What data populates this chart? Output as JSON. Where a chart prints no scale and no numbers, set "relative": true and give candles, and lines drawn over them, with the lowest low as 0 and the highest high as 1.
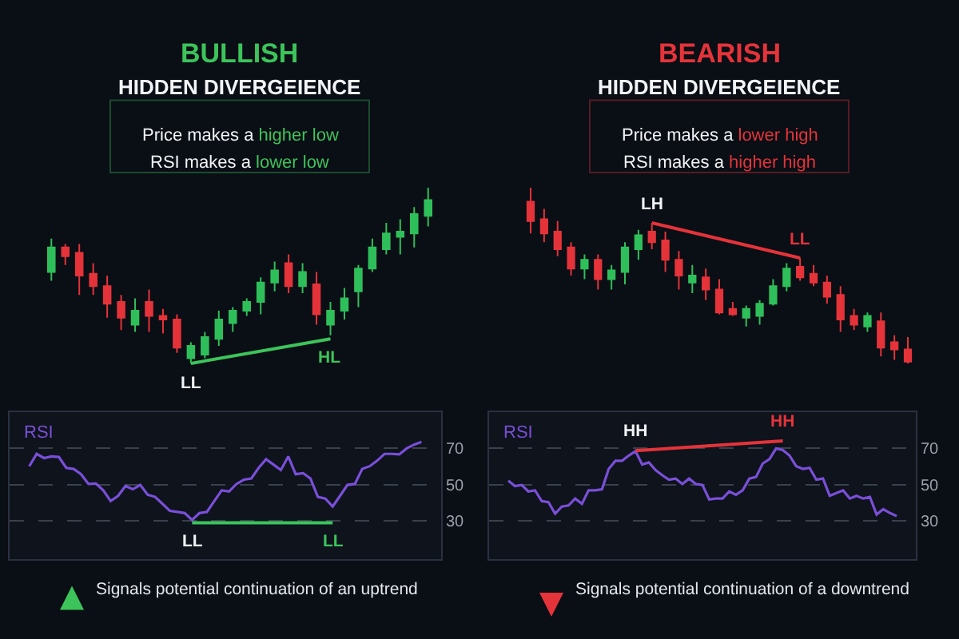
{
  "chart_data": [
    {
      "type": "candlestick",
      "title": "BULLISH",
      "subtitle": "HIDDEN DIVERGEIENCE",
      "relative": true,
      "tick_labels": false,
      "categories": [
        null,
        null,
        null,
        null,
        null,
        null,
        null,
        null,
        null,
        null,
        null,
        null,
        null,
        null,
        null,
        null,
        null,
        null,
        null,
        null,
        null,
        null,
        null,
        null,
        null,
        null,
        null,
        null
      ],
      "ohlc": [
        [
          0.52,
          0.71,
          0.47,
          0.66
        ],
        [
          0.66,
          0.68,
          0.56,
          0.61
        ],
        [
          0.63,
          0.68,
          0.39,
          0.5
        ],
        [
          0.51,
          0.57,
          0.39,
          0.44
        ],
        [
          0.44,
          0.5,
          0.26,
          0.34
        ],
        [
          0.35,
          0.39,
          0.19,
          0.26
        ],
        [
          0.22,
          0.37,
          0.18,
          0.3
        ],
        [
          0.35,
          0.42,
          0.18,
          0.27
        ],
        [
          0.27,
          0.31,
          0.17,
          0.25
        ],
        [
          0.25,
          0.28,
          0.06,
          0.09
        ],
        [
          0.03,
          0.12,
          0,
          0.1
        ],
        [
          0.05,
          0.18,
          0.03,
          0.15
        ],
        [
          0.14,
          0.3,
          0.1,
          0.25
        ],
        [
          0.23,
          0.32,
          0.18,
          0.3
        ],
        [
          0.3,
          0.37,
          0.27,
          0.35
        ],
        [
          0.35,
          0.49,
          0.28,
          0.46
        ],
        [
          0.46,
          0.58,
          0.41,
          0.53
        ],
        [
          0.57,
          0.62,
          0.4,
          0.44
        ],
        [
          0.44,
          0.57,
          0.4,
          0.52
        ],
        [
          0.45,
          0.52,
          0.22,
          0.28
        ],
        [
          0.22,
          0.35,
          0.16,
          0.3
        ],
        [
          0.3,
          0.43,
          0.25,
          0.37
        ],
        [
          0.41,
          0.56,
          0.32,
          0.54
        ],
        [
          0.54,
          0.71,
          0.52,
          0.66
        ],
        [
          0.65,
          0.8,
          0.62,
          0.74
        ],
        [
          0.72,
          0.82,
          0.62,
          0.75
        ],
        [
          0.74,
          0.89,
          0.66,
          0.85
        ],
        [
          0.84,
          1.0,
          0.78,
          0.93
        ]
      ],
      "series": [
        {
          "type": "line",
          "color": "#3cc45a",
          "values": [
            null,
            null,
            null,
            null,
            null,
            null,
            null,
            null,
            null,
            null,
            0,
            null,
            null,
            null,
            null,
            null,
            null,
            null,
            null,
            null,
            0.14,
            null,
            null,
            null,
            null,
            null,
            null,
            null
          ]
        }
      ],
      "annotations": [
        "Price makes a higher low",
        "RSI makes a lower low",
        {
          "text": "LL",
          "y": 0
        },
        {
          "text": "HL",
          "y": 0.14
        },
        "Signals potential continuation of an uptrend"
      ]
    },
    {
      "type": "line",
      "title": "RSI",
      "ylim": [
        9,
        90
      ],
      "yticks": [
        30,
        50,
        70
      ],
      "grid": "y",
      "tick_labels": "y",
      "categories": [
        null,
        null,
        null,
        null,
        null,
        null,
        null,
        null,
        null,
        null,
        null,
        null,
        null,
        null,
        null,
        null,
        null,
        null,
        null,
        null,
        null,
        null,
        null,
        null,
        null,
        null,
        null,
        null,
        null,
        null,
        null,
        null,
        null,
        null,
        null,
        null,
        null,
        null,
        null,
        null,
        null,
        null,
        null,
        null,
        null,
        null,
        null,
        null,
        null,
        null,
        null,
        null,
        null,
        null
      ],
      "series": [
        {
          "color": "#7a4fd8",
          "values": [
            60.2,
            67.0,
            64.7,
            65.6,
            65.3,
            59.3,
            58.7,
            55.8,
            50.4,
            50.7,
            46.9,
            41.0,
            43.9,
            49.3,
            47.5,
            49.9,
            44.5,
            43.3,
            39.5,
            35.6,
            35.0,
            34.4,
            30.6,
            34.4,
            35.0,
            41.0,
            46.9,
            46.3,
            50.4,
            52.8,
            53.4,
            59.3,
            64.1,
            61.1,
            58.1,
            65.6,
            55.8,
            56.4,
            53.4,
            43.3,
            42.4,
            38.0,
            43.9,
            49.9,
            50.4,
            58.7,
            60.2,
            63.2,
            67.0,
            67.0,
            66.7,
            70.0,
            72.1,
            73.6
          ]
        },
        {
          "type": "line",
          "color": "#3cc45a",
          "values": [
            null,
            null,
            null,
            null,
            null,
            null,
            null,
            null,
            null,
            null,
            null,
            null,
            null,
            null,
            null,
            null,
            null,
            null,
            null,
            null,
            null,
            null,
            29,
            null,
            null,
            null,
            null,
            null,
            null,
            null,
            null,
            null,
            null,
            null,
            null,
            null,
            null,
            null,
            null,
            null,
            null,
            29,
            null,
            null,
            null,
            null,
            null,
            null,
            null,
            null,
            null,
            null,
            null,
            null
          ]
        }
      ],
      "annotations": [
        {
          "text": "LL",
          "y": 29
        },
        {
          "text": "LL",
          "y": 29
        }
      ]
    },
    {
      "type": "candlestick",
      "title": "BEARISH",
      "subtitle": "HIDDEN DIVERGEIENCE",
      "relative": true,
      "tick_labels": false,
      "categories": [
        null,
        null,
        null,
        null,
        null,
        null,
        null,
        null,
        null,
        null,
        null,
        null,
        null,
        null,
        null,
        null,
        null,
        null,
        null,
        null,
        null,
        null,
        null,
        null,
        null,
        null,
        null,
        null,
        null
      ],
      "ohlc": [
        [
          0.92,
          1.0,
          0.74,
          0.81
        ],
        [
          0.82,
          0.88,
          0.69,
          0.74
        ],
        [
          0.75,
          0.81,
          0.61,
          0.65
        ],
        [
          0.66,
          0.69,
          0.5,
          0.54
        ],
        [
          0.54,
          0.62,
          0.48,
          0.59
        ],
        [
          0.59,
          0.62,
          0.42,
          0.48
        ],
        [
          0.48,
          0.56,
          0.42,
          0.53
        ],
        [
          0.52,
          0.69,
          0.45,
          0.66
        ],
        [
          0.65,
          0.76,
          0.59,
          0.73
        ],
        [
          0.75,
          0.8,
          0.65,
          0.69
        ],
        [
          0.7,
          0.75,
          0.52,
          0.59
        ],
        [
          0.59,
          0.64,
          0.42,
          0.5
        ],
        [
          0.46,
          0.56,
          0.4,
          0.5
        ],
        [
          0.49,
          0.54,
          0.36,
          0.42
        ],
        [
          0.42,
          0.48,
          0.28,
          0.29
        ],
        [
          0.31,
          0.35,
          0.27,
          0.28
        ],
        [
          0.26,
          0.33,
          0.21,
          0.31
        ],
        [
          0.27,
          0.36,
          0.22,
          0.34
        ],
        [
          0.34,
          0.48,
          0.33,
          0.44
        ],
        [
          0.44,
          0.57,
          0.41,
          0.54
        ],
        [
          0.55,
          0.6,
          0.47,
          0.49
        ],
        [
          0.51,
          0.56,
          0.44,
          0.46
        ],
        [
          0.46,
          0.5,
          0.34,
          0.38
        ],
        [
          0.39,
          0.44,
          0.18,
          0.25
        ],
        [
          0.27,
          0.31,
          0.19,
          0.22
        ],
        [
          0.21,
          0.29,
          0.18,
          0.27
        ],
        [
          0.24,
          0.29,
          0.04,
          0.09
        ],
        [
          0.12,
          0.16,
          0.02,
          0.08
        ],
        [
          0.08,
          0.15,
          0,
          0.01
        ]
      ],
      "series": [
        {
          "type": "line",
          "color": "#e5333a",
          "values": [
            null,
            null,
            null,
            null,
            null,
            null,
            null,
            null,
            null,
            0.8,
            null,
            null,
            null,
            null,
            null,
            null,
            null,
            null,
            null,
            null,
            0.6,
            null,
            null,
            null,
            null,
            null,
            null,
            null,
            null
          ]
        }
      ],
      "annotations": [
        "Price makes a lower high",
        "RSI makes a higher high",
        {
          "text": "LH",
          "y": 0.8
        },
        {
          "text": "LL",
          "y": 0.6
        },
        "Signals potential continuation of a downtrend"
      ]
    },
    {
      "type": "line",
      "title": "RSI",
      "ylim": [
        9,
        90
      ],
      "yticks": [
        30,
        50,
        70
      ],
      "grid": "y",
      "tick_labels": "y",
      "categories": [
        null,
        null,
        null,
        null,
        null,
        null,
        null,
        null,
        null,
        null,
        null,
        null,
        null,
        null,
        null,
        null,
        null,
        null,
        null,
        null,
        null,
        null,
        null,
        null,
        null,
        null,
        null,
        null,
        null,
        null,
        null,
        null,
        null,
        null,
        null,
        null,
        null,
        null,
        null,
        null,
        null,
        null,
        null,
        null,
        null,
        null,
        null,
        null,
        null,
        null,
        null,
        null,
        null,
        null,
        null,
        null,
        null,
        null,
        null
      ],
      "series": [
        {
          "color": "#7a4fd8",
          "values": [
            52.2,
            49.3,
            49.9,
            46.3,
            46.9,
            41.0,
            40.4,
            34.1,
            38.0,
            38.6,
            42.4,
            39.5,
            46.9,
            46.9,
            47.5,
            58.7,
            63.2,
            63.2,
            66.1,
            68.5,
            61.1,
            62.3,
            58.1,
            55.2,
            52.8,
            53.4,
            50.4,
            53.4,
            50.4,
            49.9,
            41.9,
            42.4,
            42.4,
            46.3,
            44.5,
            46.9,
            53.4,
            54.3,
            61.7,
            64.1,
            70.0,
            69.1,
            66.1,
            60.2,
            58.7,
            59.3,
            52.8,
            53.4,
            43.9,
            45.4,
            46.9,
            42.4,
            43.9,
            42.4,
            43.3,
            33.6,
            36.5,
            34.4,
            32.7
          ]
        },
        {
          "type": "line",
          "color": "#e5333a",
          "values": [
            null,
            null,
            null,
            null,
            null,
            null,
            null,
            null,
            null,
            null,
            null,
            null,
            null,
            null,
            null,
            null,
            null,
            null,
            null,
            68.8,
            null,
            null,
            null,
            null,
            null,
            null,
            null,
            null,
            null,
            null,
            null,
            null,
            null,
            null,
            null,
            null,
            null,
            null,
            null,
            null,
            null,
            74.1,
            null,
            null,
            null,
            null,
            null,
            null,
            null,
            null,
            null,
            null,
            null,
            null,
            null,
            null,
            null,
            null,
            null
          ]
        }
      ],
      "annotations": [
        {
          "text": "HH",
          "y": 68.8
        },
        {
          "text": "HH",
          "y": 74.1
        }
      ]
    }
  ]
}
